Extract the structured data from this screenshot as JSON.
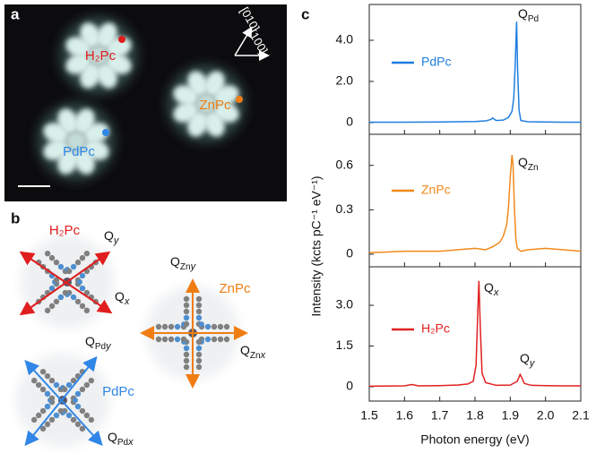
{
  "panel_a": {
    "label": "a",
    "molecules": [
      {
        "name": "H₂Pc",
        "color": "#e01e1e"
      },
      {
        "name": "ZnPc",
        "color": "#f07d12"
      },
      {
        "name": "PdPc",
        "color": "#2f86e6"
      }
    ],
    "directions": [
      "[010]",
      "[100]"
    ]
  },
  "panel_b": {
    "label": "b",
    "molecules": [
      {
        "name": "H₂Pc",
        "color": "#e01e1e",
        "modes": [
          {
            "main": "Q",
            "var": "y"
          },
          {
            "main": "Q",
            "var": "x"
          }
        ]
      },
      {
        "name": "ZnPc",
        "color": "#f07d12",
        "modes": [
          {
            "main": "Q",
            "sub": "Zn",
            "var": "y"
          },
          {
            "main": "Q",
            "sub": "Zn",
            "var": "x"
          }
        ]
      },
      {
        "name": "PdPc",
        "color": "#2f86e6",
        "modes": [
          {
            "main": "Q",
            "sub": "Pd",
            "var": "y"
          },
          {
            "main": "Q",
            "sub": "Pd",
            "var": "x"
          }
        ]
      }
    ]
  },
  "chart_data": {
    "type": "line",
    "panel_label": "c",
    "xlabel": "Photon energy (eV)",
    "ylabel": "Intensity (kcts pC⁻¹ eV⁻¹)",
    "xlim": [
      1.5,
      2.1
    ],
    "xticks": [
      1.5,
      1.6,
      1.7,
      1.8,
      1.9,
      {
        "value": 2.0,
        "label": "2.0"
      },
      2.1
    ],
    "panels": [
      {
        "ylim": [
          -0.57,
          5.74
        ],
        "yticks": [
          0,
          {
            "value": 2,
            "label": "2.0"
          },
          {
            "value": 4,
            "label": "4.0"
          }
        ],
        "annotations": [
          {
            "main": "Q",
            "sub": "Pd"
          }
        ],
        "series": [
          {
            "name": "PdPc",
            "color": "#1f7ee0",
            "x": [
              1.5,
              1.6,
              1.7,
              1.8,
              1.83,
              1.845,
              1.85,
              1.86,
              1.88,
              1.895,
              1.905,
              1.91,
              1.914,
              1.918,
              1.921,
              1.925,
              1.93,
              1.95,
              2.0,
              2.05,
              2.1
            ],
            "values": [
              0.02,
              0.02,
              0.03,
              0.05,
              0.08,
              0.15,
              0.22,
              0.1,
              0.12,
              0.25,
              0.55,
              1.2,
              2.8,
              4.9,
              2.5,
              0.6,
              0.1,
              0.04,
              0.03,
              0.02,
              0.02
            ]
          }
        ]
      },
      {
        "ylim": [
          -0.085,
          0.81
        ],
        "yticks": [
          0,
          0.3,
          0.6
        ],
        "annotations": [
          {
            "main": "Q",
            "sub": "Zn"
          }
        ],
        "series": [
          {
            "name": "ZnPc",
            "color": "#f08a1a",
            "x": [
              1.5,
              1.55,
              1.6,
              1.65,
              1.7,
              1.75,
              1.8,
              1.83,
              1.85,
              1.87,
              1.88,
              1.89,
              1.895,
              1.9,
              1.905,
              1.908,
              1.912,
              1.916,
              1.92,
              1.93,
              1.95,
              2.0,
              2.05,
              2.1
            ],
            "values": [
              0.01,
              0.015,
              0.02,
              0.02,
              0.02,
              0.03,
              0.04,
              0.03,
              0.05,
              0.08,
              0.12,
              0.2,
              0.32,
              0.52,
              0.67,
              0.6,
              0.3,
              0.1,
              0.04,
              0.02,
              0.03,
              0.04,
              0.03,
              0.02
            ]
          }
        ]
      },
      {
        "ylim": [
          -0.53,
          4.42
        ],
        "yticks": [
          0,
          1.5,
          {
            "value": 3,
            "label": "3.0"
          }
        ],
        "annotations": [
          {
            "main": "Q",
            "var": "x"
          },
          {
            "main": "Q",
            "var": "y"
          }
        ],
        "series": [
          {
            "name": "H₂Pc",
            "color": "#e02020",
            "x": [
              1.5,
              1.6,
              1.62,
              1.64,
              1.7,
              1.75,
              1.78,
              1.795,
              1.803,
              1.808,
              1.811,
              1.815,
              1.82,
              1.83,
              1.86,
              1.9,
              1.92,
              1.928,
              1.932,
              1.94,
              1.96,
              2.0,
              2.05,
              2.1
            ],
            "values": [
              0.02,
              0.03,
              0.08,
              0.03,
              0.04,
              0.06,
              0.1,
              0.2,
              0.8,
              2.8,
              3.9,
              2.2,
              0.5,
              0.15,
              0.05,
              0.06,
              0.2,
              0.45,
              0.35,
              0.12,
              0.05,
              0.04,
              0.03,
              0.03
            ]
          }
        ]
      }
    ]
  }
}
